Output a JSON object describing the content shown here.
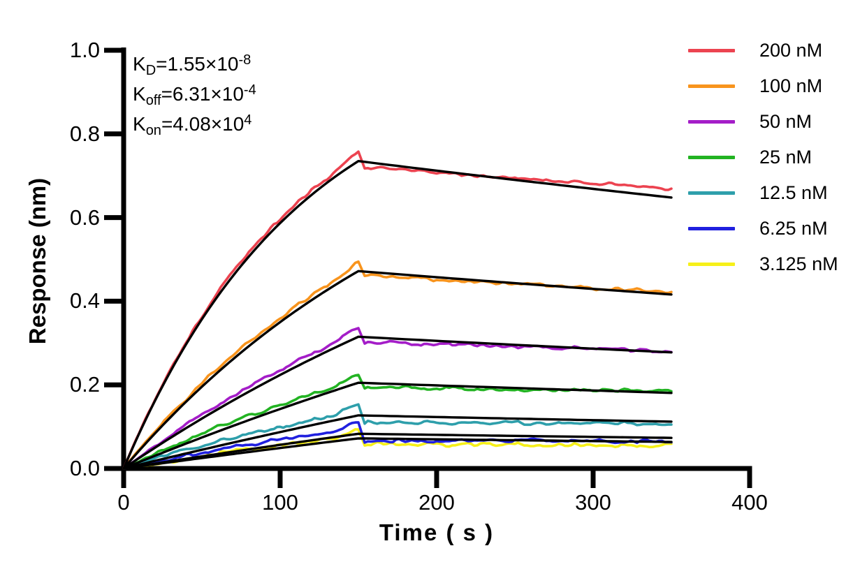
{
  "figure": {
    "background": "#ffffff",
    "annotations": [
      {
        "base": "K",
        "sub": "D",
        "eq": "=1.55×10",
        "sup": "-8"
      },
      {
        "base": "K",
        "sub": "off",
        "eq": "=6.31×10",
        "sup": "-4"
      },
      {
        "base": "K",
        "sub": "on",
        "eq": "=4.08×10",
        "sup": "4"
      }
    ]
  },
  "chart_data": {
    "type": "line",
    "title": "",
    "xlabel": "Time ( s )",
    "ylabel": "Response (nm)",
    "xlim": [
      0,
      400
    ],
    "ylim": [
      0,
      1.0
    ],
    "x_ticks": [
      0,
      100,
      200,
      300,
      400
    ],
    "x_tick_labels": [
      "0",
      "100",
      "200",
      "300",
      "400"
    ],
    "y_ticks": [
      0,
      0.2,
      0.4,
      0.6,
      0.8,
      1.0
    ],
    "y_tick_labels": [
      "0.0",
      "0.2",
      "0.4",
      "0.6",
      "0.8",
      "1.0"
    ],
    "grid": false,
    "legend_position": "right-outside",
    "axis_color": "#000000",
    "fit_color": "#000000",
    "kinetics": {
      "KD_M": 1.55e-08,
      "koff_per_s": 0.000631,
      "kon_per_M_s": 40800
    },
    "association_start_s": 0,
    "association_end_s": 150,
    "dissociation_end_s": 350,
    "series": [
      {
        "label": "200 nM",
        "conc_nM": 200,
        "color": "#EC4350",
        "kobs": 0.00879,
        "fit_peak_nm": 0.735,
        "fit_end_nm": 0.648,
        "data_peak_nm": 0.76,
        "data_end_nm": 0.67,
        "noise_nm": 0.0045,
        "above_nm": 0.01,
        "spike_nm": 0.015,
        "drop_nm": -0.012,
        "end_offset_nm": 0.022,
        "seed": 101
      },
      {
        "label": "100 nM",
        "conc_nM": 100,
        "color": "#F8941D",
        "kobs": 0.004711,
        "fit_peak_nm": 0.472,
        "fit_end_nm": 0.416,
        "data_peak_nm": 0.49,
        "data_end_nm": 0.422,
        "noise_nm": 0.0045,
        "above_nm": 0.01,
        "spike_nm": 0.01,
        "drop_nm": -0.008,
        "end_offset_nm": 0.006,
        "seed": 102
      },
      {
        "label": "50 nM",
        "conc_nM": 50,
        "color": "#A41DC8",
        "kobs": 0.002671,
        "fit_peak_nm": 0.315,
        "fit_end_nm": 0.278,
        "data_peak_nm": 0.338,
        "data_end_nm": 0.282,
        "noise_nm": 0.005,
        "above_nm": 0.012,
        "spike_nm": 0.012,
        "drop_nm": -0.012,
        "end_offset_nm": 0.004,
        "seed": 103
      },
      {
        "label": "25 nM",
        "conc_nM": 25,
        "color": "#22B322",
        "kobs": 0.001651,
        "fit_peak_nm": 0.205,
        "fit_end_nm": 0.181,
        "data_peak_nm": 0.222,
        "data_end_nm": 0.185,
        "noise_nm": 0.005,
        "above_nm": 0.01,
        "spike_nm": 0.008,
        "drop_nm": -0.01,
        "end_offset_nm": 0.004,
        "seed": 104
      },
      {
        "label": "12.5 nM",
        "conc_nM": 12.5,
        "color": "#2E9FAB",
        "kobs": 0.001141,
        "fit_peak_nm": 0.127,
        "fit_end_nm": 0.112,
        "data_peak_nm": 0.155,
        "data_end_nm": 0.108,
        "noise_nm": 0.005,
        "above_nm": 0.012,
        "spike_nm": 0.015,
        "drop_nm": -0.015,
        "end_offset_nm": -0.004,
        "seed": 105
      },
      {
        "label": "6.25 nM",
        "conc_nM": 6.25,
        "color": "#2020DF",
        "kobs": 0.000886,
        "fit_peak_nm": 0.083,
        "fit_end_nm": 0.073,
        "data_peak_nm": 0.112,
        "data_end_nm": 0.066,
        "noise_nm": 0.005,
        "above_nm": 0.012,
        "spike_nm": 0.017,
        "drop_nm": -0.016,
        "end_offset_nm": -0.007,
        "seed": 106
      },
      {
        "label": "3.125 nM",
        "conc_nM": 3.125,
        "color": "#F6F019",
        "kobs": 0.000759,
        "fit_peak_nm": 0.072,
        "fit_end_nm": 0.063,
        "data_peak_nm": 0.09,
        "data_end_nm": 0.055,
        "noise_nm": 0.005,
        "above_nm": 0.006,
        "spike_nm": 0.012,
        "drop_nm": -0.013,
        "end_offset_nm": -0.008,
        "seed": 107
      }
    ]
  }
}
